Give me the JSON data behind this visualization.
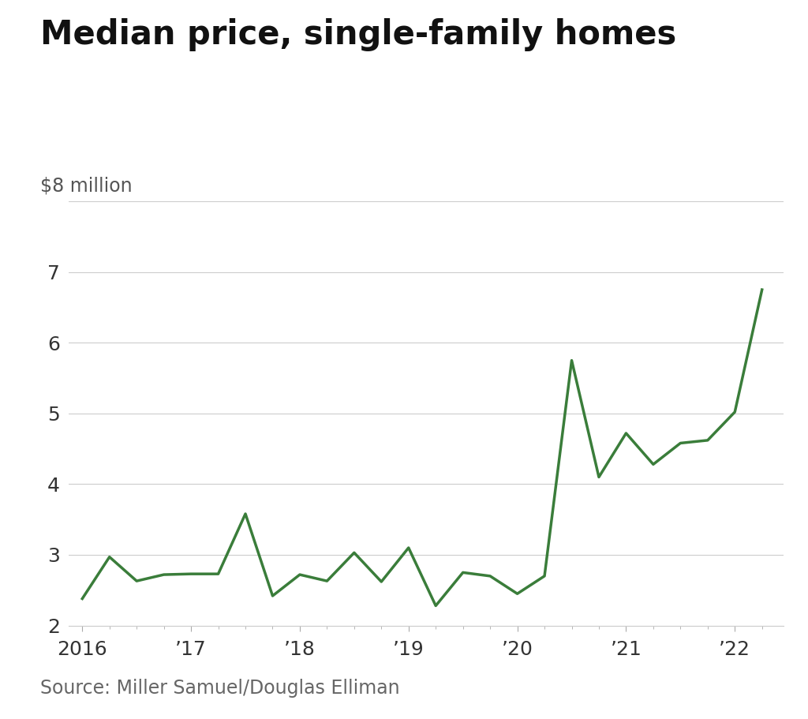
{
  "title": "Median price, single-family homes",
  "ylabel": "$8 million",
  "source": "Source: Miller Samuel/Douglas Elliman",
  "line_color": "#3a7d3a",
  "background_color": "#ffffff",
  "grid_color": "#cccccc",
  "title_fontsize": 30,
  "ylabel_fontsize": 17,
  "source_fontsize": 17,
  "tick_fontsize": 18,
  "ylim": [
    2.0,
    8.0
  ],
  "yticks": [
    2,
    3,
    4,
    5,
    6,
    7
  ],
  "x_values": [
    0,
    1,
    2,
    3,
    4,
    5,
    6,
    7,
    8,
    9,
    10,
    11,
    12,
    13,
    14,
    15,
    16,
    17,
    18,
    19,
    20,
    21,
    22,
    23,
    24,
    25
  ],
  "y_values": [
    2.38,
    2.97,
    2.63,
    2.72,
    2.73,
    2.73,
    3.58,
    2.42,
    2.72,
    2.63,
    3.03,
    2.62,
    3.1,
    2.28,
    2.75,
    2.7,
    2.45,
    2.7,
    5.75,
    4.1,
    4.72,
    4.28,
    4.58,
    4.62,
    5.02,
    6.75
  ],
  "x_tick_positions": [
    0,
    4,
    8,
    12,
    16,
    20,
    24
  ],
  "x_tick_labels": [
    "2016",
    "’17",
    "’18",
    "’19",
    "’20",
    "’21",
    "’22"
  ],
  "line_width": 2.5
}
